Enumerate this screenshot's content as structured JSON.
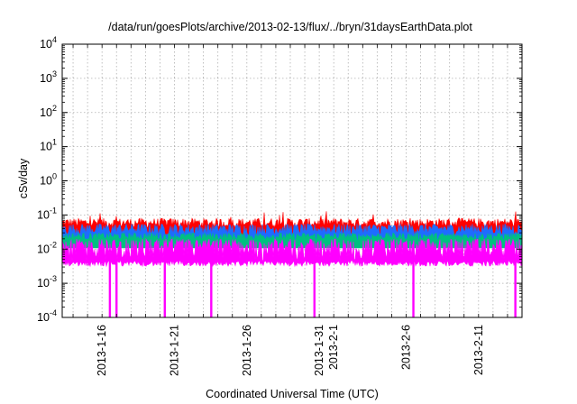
{
  "chart_data": {
    "type": "area",
    "title": "/data/run/goesPlots/archive/2013-02-13/flux/../bryn/31daysEarthData.plot",
    "xlabel": "Coordinated Universal Time (UTC)",
    "ylabel": "cSv/day",
    "yscale": "log",
    "ylim": [
      0.0001,
      10000
    ],
    "xlim": [
      "2013-01-13T06:00",
      "2013-02-14T00:00"
    ],
    "grid": true,
    "y_ticks": [
      {
        "base": "10",
        "exp": "-4",
        "value": 0.0001
      },
      {
        "base": "10",
        "exp": "-3",
        "value": 0.001
      },
      {
        "base": "10",
        "exp": "-2",
        "value": 0.01
      },
      {
        "base": "10",
        "exp": "-1",
        "value": 0.1
      },
      {
        "base": "10",
        "exp": "0",
        "value": 1
      },
      {
        "base": "10",
        "exp": "1",
        "value": 10
      },
      {
        "base": "10",
        "exp": "2",
        "value": 100
      },
      {
        "base": "10",
        "exp": "3",
        "value": 1000
      },
      {
        "base": "10",
        "exp": "4",
        "value": 10000
      }
    ],
    "x_tick_labels": [
      {
        "date": "2013-01-16",
        "label": "2013-1-16"
      },
      {
        "date": "2013-01-21",
        "label": "2013-1-21"
      },
      {
        "date": "2013-01-26",
        "label": "2013-1-26"
      },
      {
        "date": "2013-01-31",
        "label": "2013-1-31"
      },
      {
        "date": "2013-02-01",
        "label": "2013-2-1"
      },
      {
        "date": "2013-02-06",
        "label": "2013-2-6"
      },
      {
        "date": "2013-02-11",
        "label": "2013-2-11"
      }
    ],
    "series": [
      {
        "color": "#ff0000",
        "typical_low": 0.04,
        "typical_high": 0.08,
        "peak": 0.13
      },
      {
        "color": "#1e6cff",
        "typical_low": 0.025,
        "typical_high": 0.055
      },
      {
        "color": "#00c080",
        "typical_low": 0.018,
        "typical_high": 0.03
      },
      {
        "color": "#ff00ff",
        "typical_low": 0.0045,
        "typical_high": 0.02,
        "dips": [
          {
            "date": "2013-01-16T13:00",
            "value": 0.0001
          },
          {
            "date": "2013-01-17T00:00",
            "value": 0.0001
          },
          {
            "date": "2013-01-20T08:00",
            "value": 0.0001
          },
          {
            "date": "2013-01-23T13:00",
            "value": 0.0001
          },
          {
            "date": "2013-01-30T16:00",
            "value": 0.0001
          },
          {
            "date": "2013-02-06T12:00",
            "value": 0.0001
          },
          {
            "date": "2013-02-13T13:00",
            "value": 0.0001
          }
        ]
      }
    ]
  }
}
